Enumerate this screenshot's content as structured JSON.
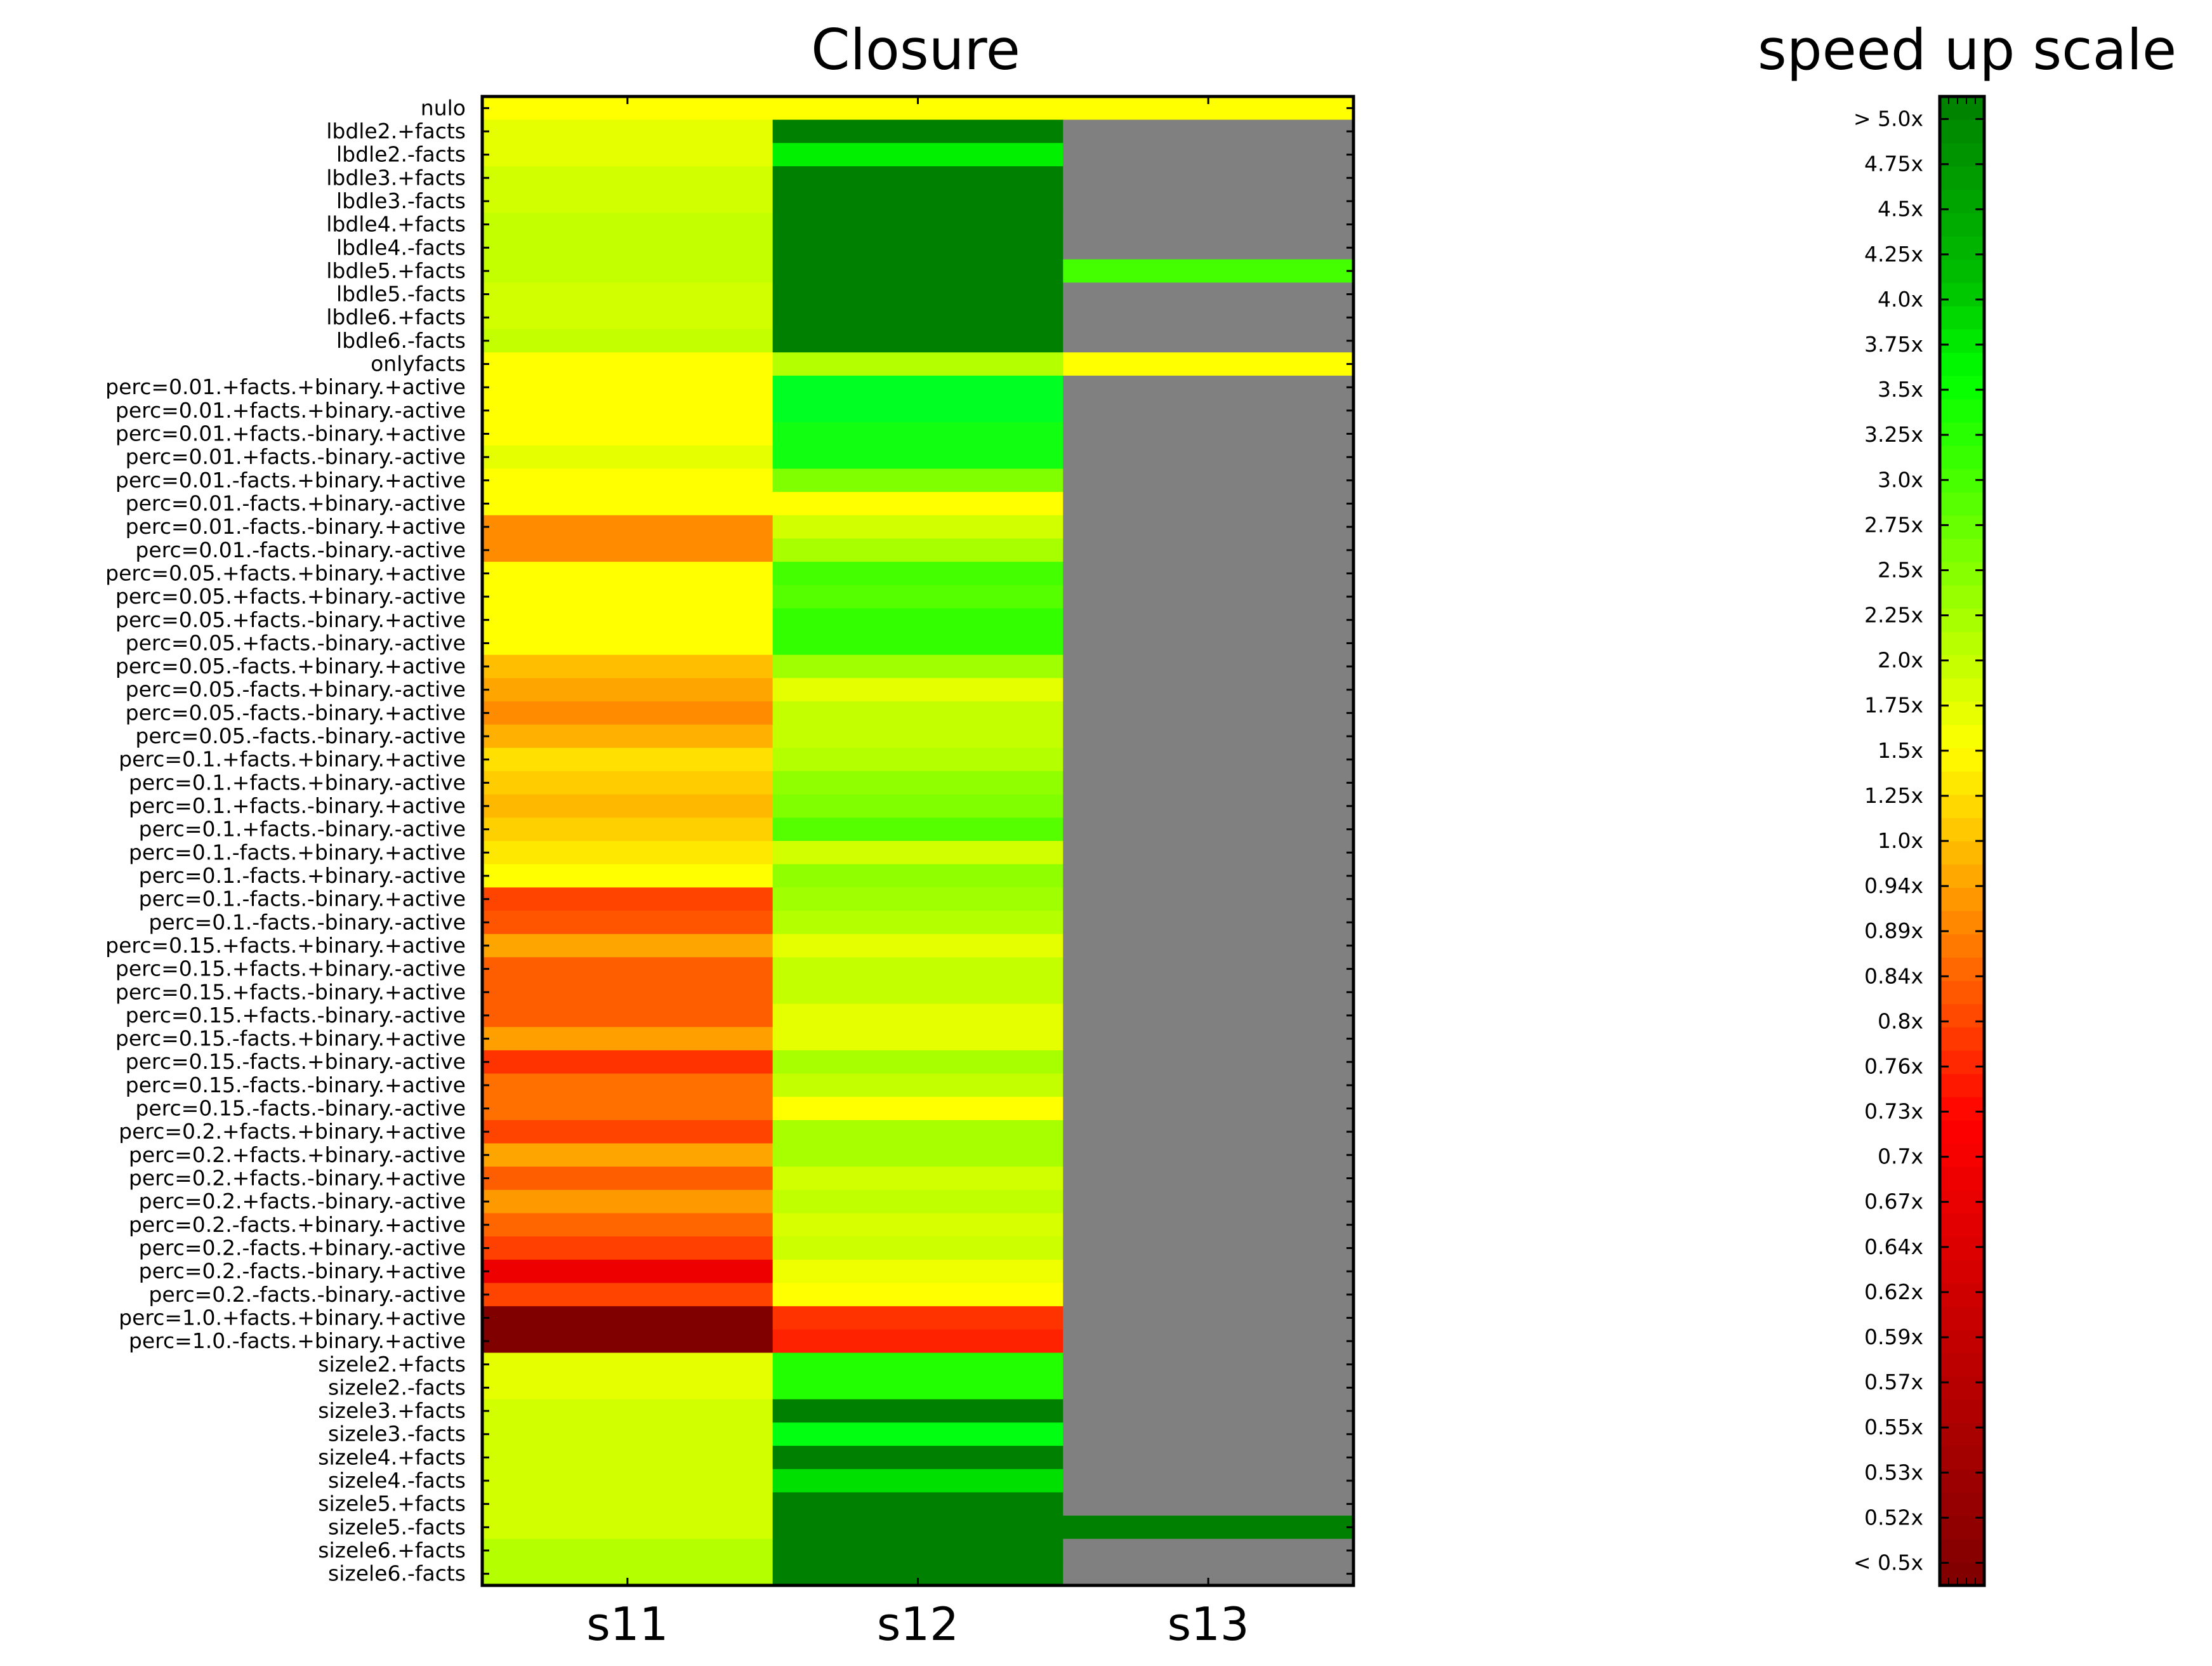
{
  "chart_data": [
    {
      "type": "heatmap",
      "title": "Closure",
      "columns": [
        "s11",
        "s12",
        "s13"
      ],
      "missing_color": "#808080",
      "rows": [
        {
          "label": "nulo",
          "colors": [
            "#ffff00",
            "#ffff00",
            "#ffff00"
          ]
        },
        {
          "label": "lbdle2.+facts",
          "colors": [
            "#e6ff00",
            "#008000",
            "#808080"
          ]
        },
        {
          "label": "lbdle2.-facts",
          "colors": [
            "#e6ff00",
            "#00f000",
            "#808080"
          ]
        },
        {
          "label": "lbdle3.+facts",
          "colors": [
            "#d2ff00",
            "#008000",
            "#808080"
          ]
        },
        {
          "label": "lbdle3.-facts",
          "colors": [
            "#d2ff00",
            "#008000",
            "#808080"
          ]
        },
        {
          "label": "lbdle4.+facts",
          "colors": [
            "#c4ff00",
            "#008000",
            "#808080"
          ]
        },
        {
          "label": "lbdle4.-facts",
          "colors": [
            "#c4ff00",
            "#008000",
            "#808080"
          ]
        },
        {
          "label": "lbdle5.+facts",
          "colors": [
            "#c4ff00",
            "#008000",
            "#44ff00"
          ]
        },
        {
          "label": "lbdle5.-facts",
          "colors": [
            "#d2ff00",
            "#008000",
            "#808080"
          ]
        },
        {
          "label": "lbdle6.+facts",
          "colors": [
            "#d2ff00",
            "#008000",
            "#808080"
          ]
        },
        {
          "label": "lbdle6.-facts",
          "colors": [
            "#c4ff00",
            "#008000",
            "#808080"
          ]
        },
        {
          "label": "onlyfacts",
          "colors": [
            "#ffff00",
            "#b4ff00",
            "#ffff00"
          ]
        },
        {
          "label": "perc=0.01.+facts.+binary.+active",
          "colors": [
            "#ffff00",
            "#00ff22",
            "#808080"
          ]
        },
        {
          "label": "perc=0.01.+facts.+binary.-active",
          "colors": [
            "#ffff00",
            "#00ff22",
            "#808080"
          ]
        },
        {
          "label": "perc=0.01.+facts.-binary.+active",
          "colors": [
            "#ffff00",
            "#11ff11",
            "#808080"
          ]
        },
        {
          "label": "perc=0.01.+facts.-binary.-active",
          "colors": [
            "#e6ff00",
            "#11ff11",
            "#808080"
          ]
        },
        {
          "label": "perc=0.01.-facts.+binary.+active",
          "colors": [
            "#ffff00",
            "#80ff00",
            "#808080"
          ]
        },
        {
          "label": "perc=0.01.-facts.+binary.-active",
          "colors": [
            "#ffff00",
            "#ffff00",
            "#808080"
          ]
        },
        {
          "label": "perc=0.01.-facts.-binary.+active",
          "colors": [
            "#ff8c00",
            "#d2ff00",
            "#808080"
          ]
        },
        {
          "label": "perc=0.01.-facts.-binary.-active",
          "colors": [
            "#ff8c00",
            "#a8ff00",
            "#808080"
          ]
        },
        {
          "label": "perc=0.05.+facts.+binary.+active",
          "colors": [
            "#ffff00",
            "#44ff00",
            "#808080"
          ]
        },
        {
          "label": "perc=0.05.+facts.+binary.-active",
          "colors": [
            "#ffff00",
            "#55ff00",
            "#808080"
          ]
        },
        {
          "label": "perc=0.05.+facts.-binary.+active",
          "colors": [
            "#ffff00",
            "#33ff00",
            "#808080"
          ]
        },
        {
          "label": "perc=0.05.+facts.-binary.-active",
          "colors": [
            "#ffff00",
            "#33ff00",
            "#808080"
          ]
        },
        {
          "label": "perc=0.05.-facts.+binary.+active",
          "colors": [
            "#ffbf00",
            "#a0ff00",
            "#808080"
          ]
        },
        {
          "label": "perc=0.05.-facts.+binary.-active",
          "colors": [
            "#ffa500",
            "#e6ff00",
            "#808080"
          ]
        },
        {
          "label": "perc=0.05.-facts.-binary.+active",
          "colors": [
            "#ff8c00",
            "#c4ff00",
            "#808080"
          ]
        },
        {
          "label": "perc=0.05.-facts.-binary.-active",
          "colors": [
            "#ffb000",
            "#c4ff00",
            "#808080"
          ]
        },
        {
          "label": "perc=0.1.+facts.+binary.+active",
          "colors": [
            "#ffe000",
            "#b4ff00",
            "#808080"
          ]
        },
        {
          "label": "perc=0.1.+facts.+binary.-active",
          "colors": [
            "#ffcc00",
            "#90ff00",
            "#808080"
          ]
        },
        {
          "label": "perc=0.1.+facts.-binary.+active",
          "colors": [
            "#ffb800",
            "#80ff00",
            "#808080"
          ]
        },
        {
          "label": "perc=0.1.+facts.-binary.-active",
          "colors": [
            "#ffd000",
            "#55ff00",
            "#808080"
          ]
        },
        {
          "label": "perc=0.1.-facts.+binary.+active",
          "colors": [
            "#ffe800",
            "#d2ff00",
            "#808080"
          ]
        },
        {
          "label": "perc=0.1.-facts.+binary.-active",
          "colors": [
            "#ffff00",
            "#90ff00",
            "#808080"
          ]
        },
        {
          "label": "perc=0.1.-facts.-binary.+active",
          "colors": [
            "#ff4400",
            "#a0ff00",
            "#808080"
          ]
        },
        {
          "label": "perc=0.1.-facts.-binary.-active",
          "colors": [
            "#ff5500",
            "#b4ff00",
            "#808080"
          ]
        },
        {
          "label": "perc=0.15.+facts.+binary.+active",
          "colors": [
            "#ffa500",
            "#e6ff00",
            "#808080"
          ]
        },
        {
          "label": "perc=0.15.+facts.+binary.-active",
          "colors": [
            "#ff5e00",
            "#c4ff00",
            "#808080"
          ]
        },
        {
          "label": "perc=0.15.+facts.-binary.+active",
          "colors": [
            "#ff5e00",
            "#c4ff00",
            "#808080"
          ]
        },
        {
          "label": "perc=0.15.+facts.-binary.-active",
          "colors": [
            "#ff5e00",
            "#e6ff00",
            "#808080"
          ]
        },
        {
          "label": "perc=0.15.-facts.+binary.+active",
          "colors": [
            "#ffa000",
            "#e6ff00",
            "#808080"
          ]
        },
        {
          "label": "perc=0.15.-facts.+binary.-active",
          "colors": [
            "#ff3300",
            "#a8ff00",
            "#808080"
          ]
        },
        {
          "label": "perc=0.15.-facts.-binary.+active",
          "colors": [
            "#ff7000",
            "#c4ff00",
            "#808080"
          ]
        },
        {
          "label": "perc=0.15.-facts.-binary.-active",
          "colors": [
            "#ff7000",
            "#ffff00",
            "#808080"
          ]
        },
        {
          "label": "perc=0.2.+facts.+binary.+active",
          "colors": [
            "#ff4400",
            "#a8ff00",
            "#808080"
          ]
        },
        {
          "label": "perc=0.2.+facts.+binary.-active",
          "colors": [
            "#ffa500",
            "#a8ff00",
            "#808080"
          ]
        },
        {
          "label": "perc=0.2.+facts.-binary.+active",
          "colors": [
            "#ff5e00",
            "#d2ff00",
            "#808080"
          ]
        },
        {
          "label": "perc=0.2.+facts.-binary.-active",
          "colors": [
            "#ff9900",
            "#c0ff00",
            "#808080"
          ]
        },
        {
          "label": "perc=0.2.-facts.+binary.+active",
          "colors": [
            "#ff6600",
            "#d8ff00",
            "#808080"
          ]
        },
        {
          "label": "perc=0.2.-facts.+binary.-active",
          "colors": [
            "#ff4000",
            "#ccff00",
            "#808080"
          ]
        },
        {
          "label": "perc=0.2.-facts.-binary.+active",
          "colors": [
            "#ee0000",
            "#f0ff00",
            "#808080"
          ]
        },
        {
          "label": "perc=0.2.-facts.-binary.-active",
          "colors": [
            "#ff4400",
            "#ffff00",
            "#808080"
          ]
        },
        {
          "label": "perc=1.0.+facts.+binary.+active",
          "colors": [
            "#800000",
            "#ff3300",
            "#808080"
          ]
        },
        {
          "label": "perc=1.0.-facts.+binary.+active",
          "colors": [
            "#800000",
            "#ff2200",
            "#808080"
          ]
        },
        {
          "label": "sizele2.+facts",
          "colors": [
            "#e6ff00",
            "#22ff00",
            "#808080"
          ]
        },
        {
          "label": "sizele2.-facts",
          "colors": [
            "#e6ff00",
            "#22ff00",
            "#808080"
          ]
        },
        {
          "label": "sizele3.+facts",
          "colors": [
            "#d2ff00",
            "#008000",
            "#808080"
          ]
        },
        {
          "label": "sizele3.-facts",
          "colors": [
            "#d2ff00",
            "#00ff11",
            "#808080"
          ]
        },
        {
          "label": "sizele4.+facts",
          "colors": [
            "#d2ff00",
            "#008000",
            "#808080"
          ]
        },
        {
          "label": "sizele4.-facts",
          "colors": [
            "#d2ff00",
            "#00e000",
            "#808080"
          ]
        },
        {
          "label": "sizele5.+facts",
          "colors": [
            "#d2ff00",
            "#008000",
            "#808080"
          ]
        },
        {
          "label": "sizele5.-facts",
          "colors": [
            "#d2ff00",
            "#008000",
            "#008000"
          ]
        },
        {
          "label": "sizele6.+facts",
          "colors": [
            "#b4ff00",
            "#008000",
            "#808080"
          ]
        },
        {
          "label": "sizele6.-facts",
          "colors": [
            "#b4ff00",
            "#008000",
            "#808080"
          ]
        }
      ]
    },
    {
      "type": "colorbar",
      "title": "speed up scale",
      "tick_labels": [
        "< 0.5x",
        "0.52x",
        "0.53x",
        "0.55x",
        "0.57x",
        "0.59x",
        "0.62x",
        "0.64x",
        "0.67x",
        "0.7x",
        "0.73x",
        "0.76x",
        "0.8x",
        "0.84x",
        "0.89x",
        "0.94x",
        "1.0x",
        "1.25x",
        "1.5x",
        "1.75x",
        "2.0x",
        "2.25x",
        "2.5x",
        "2.75x",
        "3.0x",
        "3.25x",
        "3.5x",
        "3.75x",
        "4.0x",
        "4.25x",
        "4.5x",
        "4.75x",
        "> 5.0x"
      ],
      "colors": [
        "#800000",
        "#990000",
        "#b30000",
        "#cc0000",
        "#e60000",
        "#ff0000",
        "#ff2000",
        "#ff4000",
        "#ff6000",
        "#ff8000",
        "#ffa000",
        "#ffc000",
        "#ffe000",
        "#ffff00",
        "#e0ff00",
        "#c0ff00",
        "#a0ff00",
        "#80ff00",
        "#60ff00",
        "#40ff00",
        "#20ff00",
        "#00ff00",
        "#00e000",
        "#00c000",
        "#00a000",
        "#008000"
      ],
      "color_stops": [
        0,
        0.0625,
        0.125,
        0.1875,
        0.25,
        0.3125,
        0.34375,
        0.375,
        0.40625,
        0.4375,
        0.46875,
        0.5,
        0.53125,
        0.5625,
        0.59375,
        0.625,
        0.65625,
        0.6875,
        0.71875,
        0.75,
        0.78125,
        0.8125,
        0.84375,
        0.875,
        0.9375,
        1
      ]
    }
  ]
}
